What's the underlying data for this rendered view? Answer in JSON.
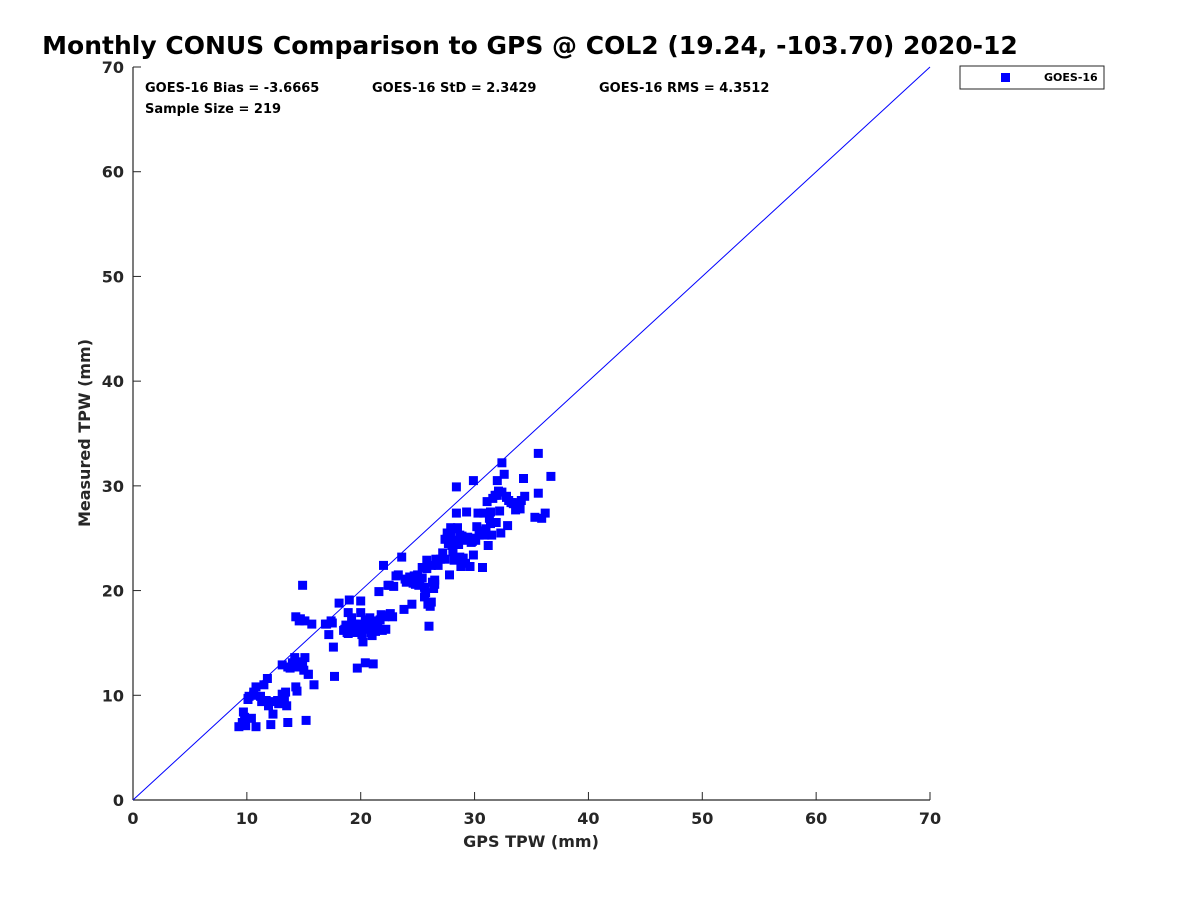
{
  "chart_data": {
    "type": "scatter",
    "title": "Monthly CONUS Comparison to GPS @ COL2 (19.24, -103.70) 2020-12",
    "xlabel": "GPS TPW (mm)",
    "ylabel": "Measured TPW (mm)",
    "xlim": [
      0,
      70
    ],
    "ylim": [
      0,
      70
    ],
    "xticks": [
      "0",
      "10",
      "20",
      "30",
      "40",
      "50",
      "60",
      "70"
    ],
    "yticks": [
      "0",
      "10",
      "20",
      "30",
      "40",
      "50",
      "60",
      "70"
    ],
    "grid": false,
    "legend_position": "outside top-right",
    "reference_line": "1:1",
    "stats": {
      "bias": "GOES-16 Bias = -3.6665",
      "std": "GOES-16 StD = 2.3429",
      "rms": "GOES-16 RMS = 4.3512",
      "sample": "Sample Size = 219"
    },
    "colors": {
      "series": "#0000ff",
      "line": "#0000ff",
      "axis": "#262626"
    },
    "series": [
      {
        "name": "GOES-16",
        "marker": "square",
        "points": [
          [
            9.3,
            7.0
          ],
          [
            9.6,
            7.4
          ],
          [
            9.8,
            7.9
          ],
          [
            9.7,
            8.4
          ],
          [
            10.1,
            9.7
          ],
          [
            10.4,
            7.8
          ],
          [
            10.8,
            7.0
          ],
          [
            9.9,
            7.1
          ],
          [
            10.2,
            9.9
          ],
          [
            10.6,
            10.3
          ],
          [
            10.8,
            10.8
          ],
          [
            11.2,
            9.9
          ],
          [
            11.5,
            11.0
          ],
          [
            11.8,
            11.6
          ],
          [
            11.3,
            9.4
          ],
          [
            11.9,
            9.0
          ],
          [
            12.4,
            9.4
          ],
          [
            12.3,
            8.2
          ],
          [
            12.1,
            7.2
          ],
          [
            12.8,
            9.2
          ],
          [
            13.1,
            10.1
          ],
          [
            13.3,
            9.6
          ],
          [
            13.5,
            9.0
          ],
          [
            13.4,
            10.3
          ],
          [
            13.6,
            7.4
          ],
          [
            13.1,
            12.9
          ],
          [
            13.6,
            12.7
          ],
          [
            14.0,
            13.1
          ],
          [
            14.2,
            13.6
          ],
          [
            14.4,
            12.7
          ],
          [
            14.4,
            10.4
          ],
          [
            14.3,
            10.8
          ],
          [
            14.6,
            17.1
          ],
          [
            14.3,
            17.5
          ],
          [
            14.7,
            17.3
          ],
          [
            14.9,
            20.5
          ],
          [
            15.1,
            17.1
          ],
          [
            15.0,
            12.4
          ],
          [
            15.4,
            12.0
          ],
          [
            15.1,
            13.6
          ],
          [
            15.7,
            16.8
          ],
          [
            15.2,
            7.6
          ],
          [
            15.9,
            11.0
          ],
          [
            17.0,
            16.8
          ],
          [
            17.2,
            15.8
          ],
          [
            17.4,
            17.1
          ],
          [
            17.6,
            14.6
          ],
          [
            17.7,
            11.8
          ],
          [
            18.1,
            18.8
          ],
          [
            18.6,
            16.3
          ],
          [
            18.8,
            16.0
          ],
          [
            18.9,
            15.9
          ],
          [
            18.9,
            17.9
          ],
          [
            19.0,
            19.1
          ],
          [
            19.2,
            17.4
          ],
          [
            19.4,
            16.8
          ],
          [
            19.6,
            16.0
          ],
          [
            19.7,
            12.6
          ],
          [
            19.8,
            16.8
          ],
          [
            20.0,
            17.9
          ],
          [
            20.1,
            15.8
          ],
          [
            20.2,
            15.1
          ],
          [
            20.0,
            19.0
          ],
          [
            20.4,
            17.2
          ],
          [
            20.4,
            13.1
          ],
          [
            20.6,
            16.3
          ],
          [
            20.7,
            16.6
          ],
          [
            20.8,
            17.4
          ],
          [
            21.0,
            15.7
          ],
          [
            21.1,
            13.0
          ],
          [
            21.2,
            17.1
          ],
          [
            21.4,
            16.7
          ],
          [
            21.3,
            16.1
          ],
          [
            21.6,
            19.9
          ],
          [
            21.8,
            17.7
          ],
          [
            21.9,
            16.2
          ],
          [
            22.0,
            22.4
          ],
          [
            22.2,
            16.3
          ],
          [
            22.3,
            17.6
          ],
          [
            22.6,
            17.8
          ],
          [
            22.4,
            20.5
          ],
          [
            22.8,
            17.5
          ],
          [
            22.9,
            20.4
          ],
          [
            23.3,
            21.5
          ],
          [
            23.6,
            23.2
          ],
          [
            23.8,
            18.2
          ],
          [
            24.0,
            20.8
          ],
          [
            24.3,
            21.3
          ],
          [
            24.5,
            18.7
          ],
          [
            24.7,
            21.1
          ],
          [
            24.8,
            20.6
          ],
          [
            25.0,
            21.5
          ],
          [
            25.2,
            20.8
          ],
          [
            25.4,
            21.2
          ],
          [
            25.6,
            19.4
          ],
          [
            25.7,
            19.8
          ],
          [
            25.8,
            22.1
          ],
          [
            25.9,
            18.7
          ],
          [
            25.8,
            22.9
          ],
          [
            26.0,
            16.6
          ],
          [
            26.2,
            22.4
          ],
          [
            26.2,
            18.9
          ],
          [
            26.4,
            20.2
          ],
          [
            26.5,
            21.0
          ],
          [
            26.6,
            23.0
          ],
          [
            26.8,
            22.4
          ],
          [
            27.0,
            23.0
          ],
          [
            27.2,
            23.6
          ],
          [
            27.4,
            24.9
          ],
          [
            27.6,
            25.5
          ],
          [
            27.7,
            24.5
          ],
          [
            27.8,
            21.5
          ],
          [
            27.9,
            26.0
          ],
          [
            28.0,
            24.3
          ],
          [
            28.1,
            23.7
          ],
          [
            28.2,
            25.9
          ],
          [
            28.2,
            22.9
          ],
          [
            28.3,
            24.8
          ],
          [
            28.4,
            27.4
          ],
          [
            28.5,
            26.0
          ],
          [
            28.6,
            24.4
          ],
          [
            28.7,
            23.2
          ],
          [
            28.8,
            22.3
          ],
          [
            28.9,
            25.2
          ],
          [
            29.0,
            23.1
          ],
          [
            29.1,
            24.8
          ],
          [
            29.2,
            22.6
          ],
          [
            29.3,
            27.5
          ],
          [
            29.4,
            25.0
          ],
          [
            29.6,
            22.3
          ],
          [
            29.7,
            24.6
          ],
          [
            29.9,
            23.4
          ],
          [
            30.0,
            25.0
          ],
          [
            30.1,
            24.8
          ],
          [
            30.2,
            26.1
          ],
          [
            30.3,
            27.4
          ],
          [
            30.4,
            25.3
          ],
          [
            30.6,
            25.6
          ],
          [
            30.7,
            22.2
          ],
          [
            30.8,
            27.4
          ],
          [
            31.0,
            25.9
          ],
          [
            31.1,
            28.5
          ],
          [
            31.2,
            24.3
          ],
          [
            31.3,
            26.9
          ],
          [
            31.4,
            27.5
          ],
          [
            31.5,
            25.3
          ],
          [
            31.6,
            28.8
          ],
          [
            31.8,
            29.1
          ],
          [
            31.9,
            26.5
          ],
          [
            32.0,
            30.5
          ],
          [
            32.1,
            29.5
          ],
          [
            32.2,
            27.6
          ],
          [
            32.3,
            25.5
          ],
          [
            32.4,
            29.4
          ],
          [
            32.4,
            32.2
          ],
          [
            32.6,
            31.1
          ],
          [
            32.8,
            28.9
          ],
          [
            32.9,
            26.2
          ],
          [
            33.0,
            28.6
          ],
          [
            33.2,
            28.4
          ],
          [
            33.4,
            28.3
          ],
          [
            33.6,
            27.7
          ],
          [
            33.8,
            28.4
          ],
          [
            33.9,
            28.0
          ],
          [
            34.1,
            28.6
          ],
          [
            34.3,
            30.7
          ],
          [
            34.4,
            29.0
          ],
          [
            35.3,
            27.0
          ],
          [
            35.6,
            29.3
          ],
          [
            35.6,
            33.1
          ],
          [
            35.9,
            26.9
          ],
          [
            36.2,
            27.4
          ],
          [
            36.7,
            30.9
          ],
          [
            28.4,
            29.9
          ],
          [
            29.9,
            30.5
          ],
          [
            32.0,
            29.1
          ],
          [
            33.7,
            28.0
          ],
          [
            27.9,
            25.2
          ],
          [
            28.7,
            25.3
          ],
          [
            26.1,
            18.5
          ],
          [
            25.6,
            20.3
          ],
          [
            24.2,
            21.0
          ],
          [
            22.5,
            20.5
          ],
          [
            21.5,
            16.5
          ],
          [
            20.3,
            16.7
          ],
          [
            19.5,
            16.8
          ],
          [
            19.2,
            16.1
          ],
          [
            18.7,
            16.7
          ],
          [
            14.6,
            12.9
          ],
          [
            13.8,
            12.6
          ],
          [
            12.7,
            9.5
          ],
          [
            11.7,
            9.5
          ],
          [
            10.6,
            10.0
          ],
          [
            10.1,
            9.6
          ],
          [
            30.5,
            25.7
          ],
          [
            31.4,
            26.4
          ],
          [
            29.4,
            25.1
          ],
          [
            28.1,
            24.0
          ],
          [
            27.6,
            25.0
          ],
          [
            26.3,
            20.8
          ],
          [
            25.1,
            20.5
          ],
          [
            24.6,
            20.7
          ],
          [
            23.9,
            21.1
          ],
          [
            22.1,
            17.5
          ],
          [
            20.9,
            16.0
          ],
          [
            19.9,
            16.3
          ],
          [
            34.0,
            27.8
          ],
          [
            32.8,
            29.0
          ],
          [
            30.9,
            25.3
          ],
          [
            29.8,
            24.7
          ],
          [
            28.9,
            22.7
          ],
          [
            27.4,
            23.0
          ],
          [
            26.5,
            20.6
          ],
          [
            25.4,
            22.2
          ],
          [
            24.7,
            21.4
          ],
          [
            23.1,
            21.4
          ],
          [
            21.7,
            17.2
          ],
          [
            20.5,
            17.2
          ],
          [
            18.5,
            16.2
          ],
          [
            17.5,
            16.9
          ],
          [
            16.9,
            16.8
          ],
          [
            15.4,
            12.0
          ],
          [
            14.9,
            13.2
          ]
        ]
      }
    ]
  }
}
